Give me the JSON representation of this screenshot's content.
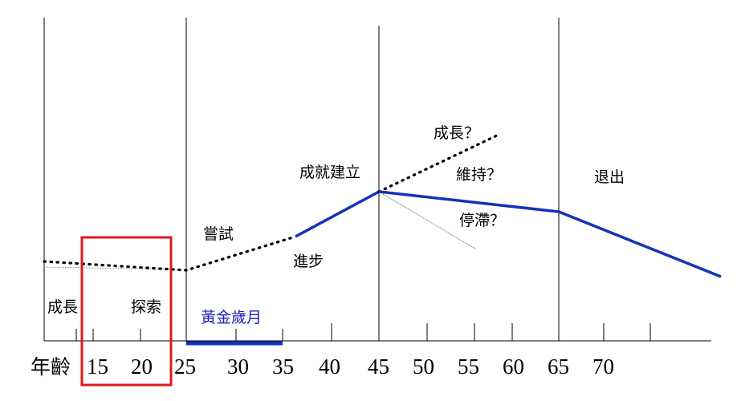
{
  "axis": {
    "title": "年齡",
    "ticks": [
      "15",
      "20",
      "25",
      "30",
      "35",
      "40",
      "45",
      "50",
      "55",
      "60",
      "65",
      "70"
    ]
  },
  "stages": {
    "growth": "成長",
    "explore": "探索",
    "try": "嘗試",
    "progress": "進步",
    "establish": "成就建立",
    "grow_q": "成長？",
    "maintain_q": "維持？",
    "stagnate_q": "停滯？",
    "exit": "退出"
  },
  "golden_years": "黃金歲月",
  "colors": {
    "line_blue": "#1533b8",
    "highlight_red": "#e0191f",
    "golden_text": "#1f23b5"
  }
}
